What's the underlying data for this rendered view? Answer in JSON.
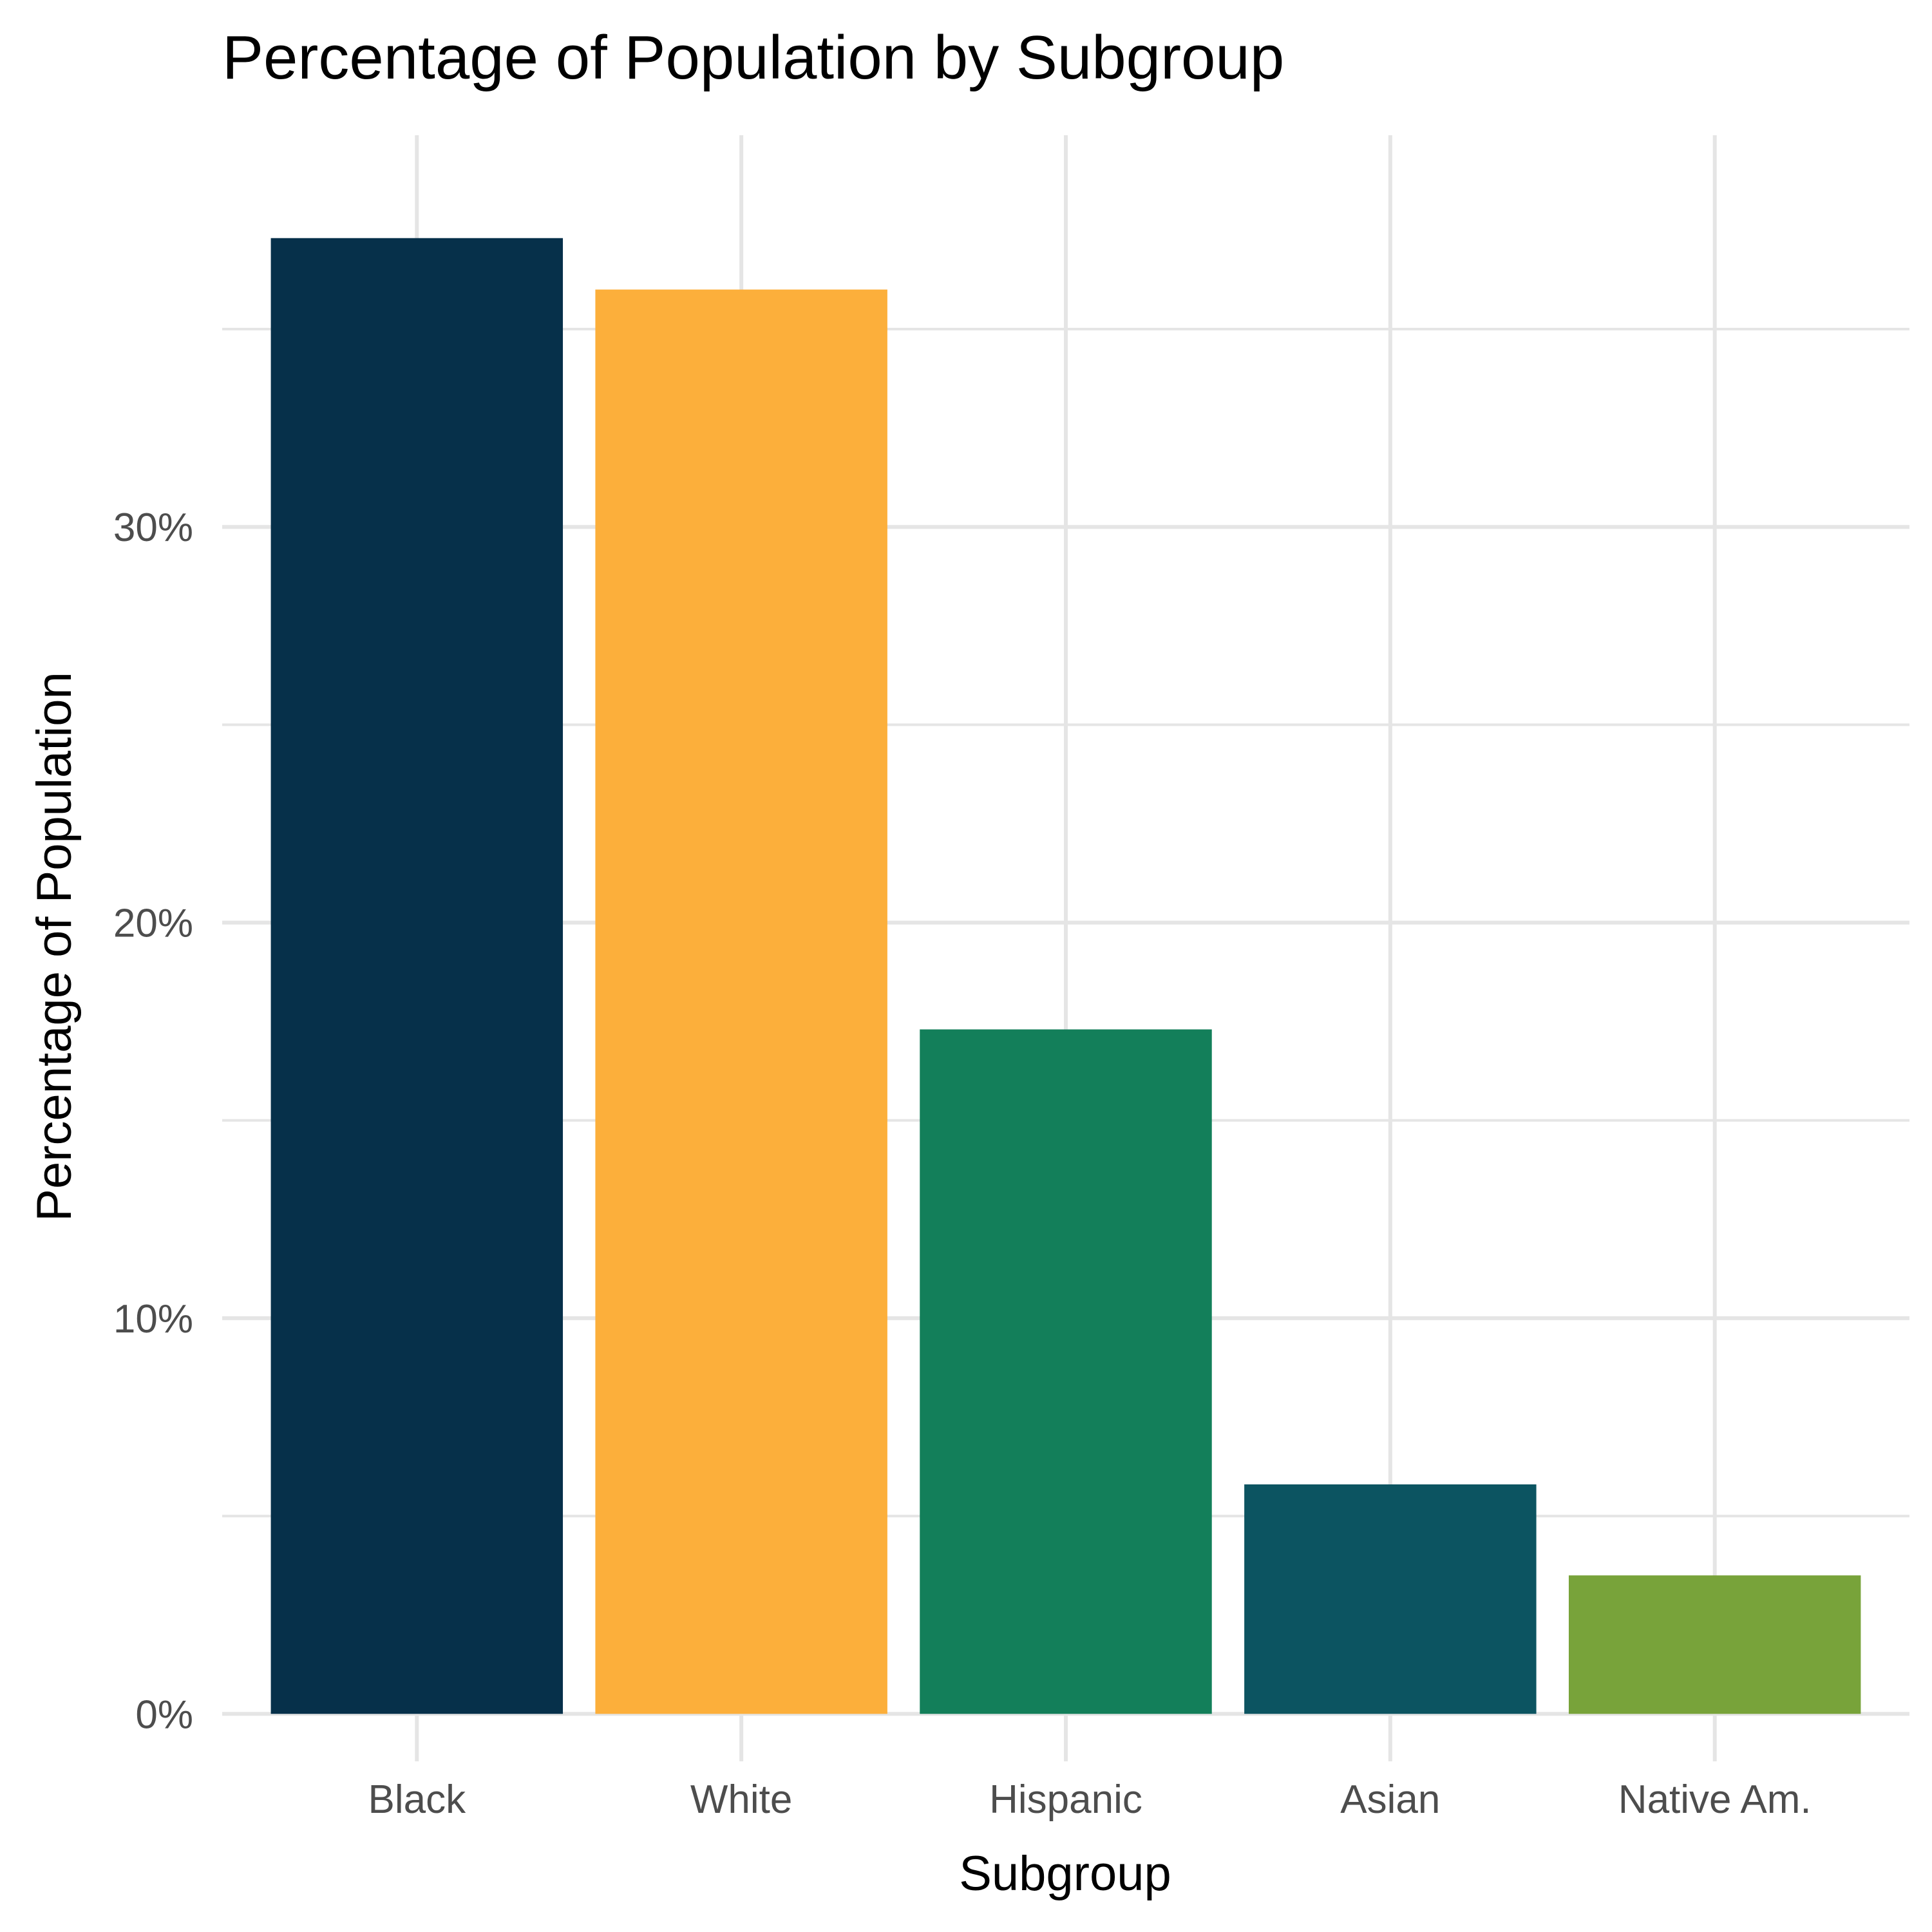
{
  "chart_data": {
    "type": "bar",
    "title": "Percentage of Population by Subgroup",
    "xlabel": "Subgroup",
    "ylabel": "Percentage of Population",
    "categories": [
      "Black",
      "White",
      "Hispanic",
      "Asian",
      "Native Am."
    ],
    "values": [
      37.3,
      36.0,
      17.3,
      5.8,
      3.5
    ],
    "colors": [
      "#06304A",
      "#FCAF3B",
      "#137F5A",
      "#0C5461",
      "#78A33A"
    ],
    "ylim": [
      -1.2,
      39.9
    ],
    "yticks": [
      0,
      10,
      20,
      30
    ],
    "ytick_labels": [
      "0%",
      "10%",
      "20%",
      "30%"
    ],
    "y_minor_ticks": [
      5,
      15,
      25,
      35
    ],
    "grid": true,
    "legend": "none"
  }
}
